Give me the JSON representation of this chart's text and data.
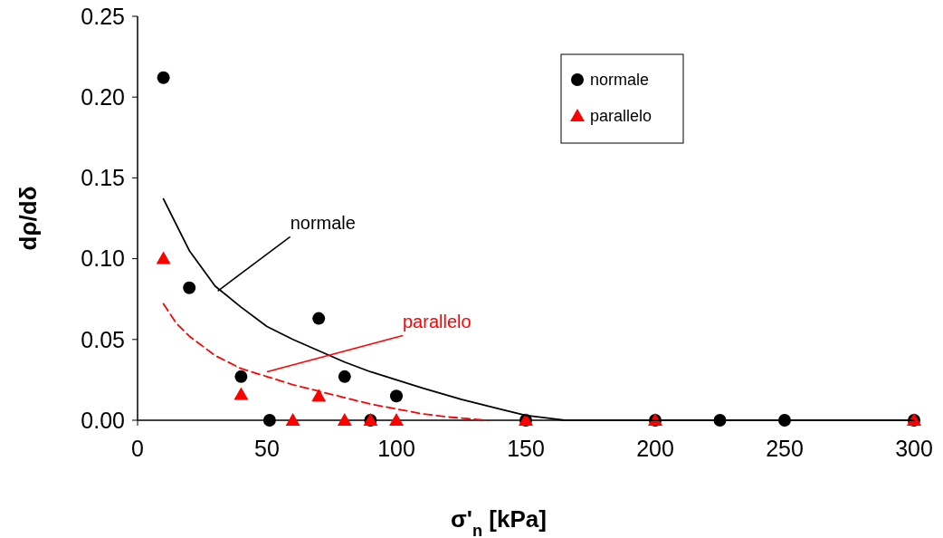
{
  "chart_data": {
    "type": "scatter",
    "xlabel": "σ'$_{n}$ [kPa]",
    "ylabel": "dρ/dδ",
    "xlim": [
      0,
      300
    ],
    "xticks": [
      0,
      50,
      100,
      150,
      200,
      250,
      300
    ],
    "ylim": [
      0,
      0.25
    ],
    "yticks": [
      {
        "value": 0,
        "label": "0.00"
      },
      {
        "value": 0.05,
        "label": "0.05"
      },
      {
        "value": 0.1,
        "label": "0.10"
      },
      {
        "value": 0.15,
        "label": "0.15"
      },
      {
        "value": 0.2,
        "label": "0.20"
      },
      {
        "value": 0.25,
        "label": "0.25"
      }
    ],
    "grid": false,
    "legend": "top right",
    "series": [
      {
        "name": "normale",
        "marker": "circle",
        "color": "#000000",
        "x": [
          10,
          20,
          40,
          51,
          70,
          80,
          90,
          100,
          150,
          200,
          225,
          250,
          300
        ],
        "values": [
          0.212,
          0.082,
          0.027,
          0,
          0.063,
          0.027,
          0,
          0.015,
          0,
          0,
          0,
          0,
          0
        ]
      },
      {
        "name": "parallelo",
        "marker": "triangle",
        "color": "#ff0000",
        "x": [
          10,
          40,
          60,
          70,
          80,
          90,
          100,
          150,
          200,
          300
        ],
        "values": [
          0.1,
          0.016,
          0,
          0.015,
          0,
          0,
          0,
          0,
          0,
          0
        ]
      },
      {
        "type": "line",
        "marker": "none",
        "line_style": "solid",
        "color": "#000000",
        "x": [
          10,
          20,
          30,
          40,
          50,
          60,
          70,
          80,
          90,
          100,
          110,
          125,
          140,
          150,
          160,
          165,
          300
        ],
        "values": [
          0.137,
          0.105,
          0.083,
          0.07,
          0.058,
          0.05,
          0.043,
          0.036,
          0.03,
          0.025,
          0.02,
          0.013,
          0.007,
          0.003,
          0.001,
          0,
          0
        ]
      },
      {
        "type": "line",
        "marker": "none",
        "line_style": "dashed",
        "color": "#ff0000",
        "x": [
          10,
          15,
          20,
          30,
          40,
          50,
          60,
          70,
          80,
          90,
          100,
          110,
          120,
          135
        ],
        "values": [
          0.072,
          0.06,
          0.052,
          0.04,
          0.032,
          0.027,
          0.022,
          0.018,
          0.014,
          0.01,
          0.007,
          0.004,
          0.002,
          0
        ]
      }
    ],
    "annotations": [
      {
        "text": "normale",
        "x": 31,
        "y": 0.08
      },
      {
        "text": "parallelo",
        "x": 50,
        "y": 0.03
      }
    ]
  }
}
